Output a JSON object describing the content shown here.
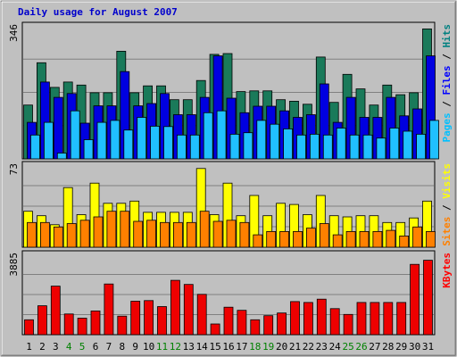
{
  "chart_data": {
    "type": "bar",
    "title": "Daily usage for August 2007",
    "categories": [
      "1",
      "2",
      "3",
      "4",
      "5",
      "6",
      "7",
      "8",
      "9",
      "10",
      "11",
      "12",
      "13",
      "14",
      "15",
      "16",
      "17",
      "18",
      "19",
      "20",
      "21",
      "22",
      "23",
      "24",
      "25",
      "26",
      "27",
      "28",
      "29",
      "30",
      "31"
    ],
    "weekend_days": [
      "4",
      "5",
      "11",
      "12",
      "18",
      "19",
      "25",
      "26"
    ],
    "panels": [
      {
        "id": "hits",
        "ymax_label": "346",
        "ylim": [
          0,
          346
        ],
        "right_label_parts": [
          {
            "text": "Pages",
            "color": "#00c0ff"
          },
          {
            "text": " / ",
            "color": "#000000"
          },
          {
            "text": "Files",
            "color": "#0000ff"
          },
          {
            "text": " / ",
            "color": "#000000"
          },
          {
            "text": "Hits",
            "color": "#008080"
          }
        ],
        "series": [
          {
            "name": "Hits",
            "color": "#1a7a5a",
            "values": [
              140,
              250,
              186,
              200,
              192,
              172,
              172,
              280,
              172,
              190,
              190,
              154,
              154,
              204,
              272,
              274,
              175,
              177,
              177,
              154,
              150,
              142,
              265,
              147,
              220,
              182,
              140,
              192,
              167,
              172,
              338
            ]
          },
          {
            "name": "Files",
            "color": "#0000e0",
            "values": [
              95,
              200,
              160,
              170,
              93,
              138,
              138,
              227,
              138,
              144,
              170,
              115,
              115,
              160,
              268,
              158,
              120,
              137,
              137,
              125,
              108,
              115,
              195,
              95,
              160,
              108,
              108,
              160,
              112,
              130,
              268
            ]
          },
          {
            "name": "Pages",
            "color": "#20c0ff",
            "values": [
              62,
              95,
              15,
              125,
              50,
              95,
              100,
              75,
              108,
              85,
              84,
              62,
              62,
              120,
              125,
              64,
              68,
              100,
              90,
              78,
              62,
              64,
              62,
              80,
              62,
              62,
              54,
              80,
              72,
              64,
              100
            ]
          }
        ]
      },
      {
        "id": "visits",
        "ymax_label": "73",
        "ylim": [
          0,
          73
        ],
        "right_label_parts": [
          {
            "text": "Sites",
            "color": "#ff8000"
          },
          {
            "text": " / ",
            "color": "#000000"
          },
          {
            "text": "Visits",
            "color": "#ffff00"
          }
        ],
        "series": [
          {
            "name": "Visits",
            "color": "#ffff00",
            "values": [
              32,
              28,
              20,
              53,
              29,
              57,
              39,
              39,
              41,
              31,
              31,
              31,
              31,
              70,
              29,
              57,
              28,
              46,
              28,
              39,
              38,
              29,
              46,
              28,
              27,
              28,
              28,
              22,
              22,
              26,
              41
            ]
          },
          {
            "name": "Sites",
            "color": "#ff8000",
            "values": [
              22,
              22,
              18,
              21,
              24,
              27,
              32,
              32,
              23,
              24,
              22,
              22,
              22,
              32,
              23,
              24,
              22,
              11,
              14,
              14,
              14,
              17,
              21,
              11,
              14,
              14,
              14,
              15,
              10,
              18,
              14
            ]
          }
        ]
      },
      {
        "id": "kbytes",
        "ymax_label": "3885",
        "ylim": [
          0,
          3885
        ],
        "right_label_parts": [
          {
            "text": "KBytes",
            "color": "#ff0000"
          }
        ],
        "series": [
          {
            "name": "KBytes",
            "color": "#ee0000",
            "values": [
              720,
              1400,
              2350,
              1000,
              800,
              1150,
              2450,
              900,
              1620,
              1650,
              1360,
              2630,
              2430,
              1950,
              520,
              1330,
              1180,
              720,
              920,
              1050,
              1600,
              1560,
              1720,
              1260,
              980,
              1560,
              1560,
              1560,
              1560,
              3400,
              3600
            ]
          }
        ]
      }
    ]
  }
}
